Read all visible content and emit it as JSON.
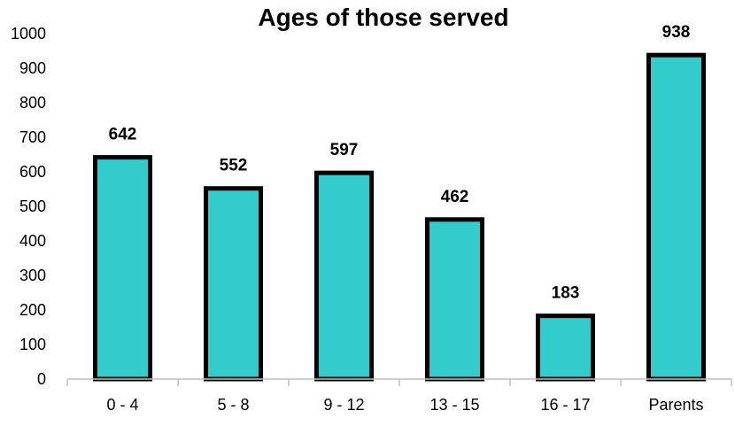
{
  "chart_data": {
    "type": "bar",
    "title": "Ages of those served",
    "xlabel": "",
    "ylabel": "",
    "categories": [
      "0 - 4",
      "5 - 8",
      "9 - 12",
      "13 - 15",
      "16 - 17",
      "Parents"
    ],
    "values": [
      642,
      552,
      597,
      462,
      183,
      938
    ],
    "ylim": [
      0,
      1000
    ],
    "yticks": [
      0,
      100,
      200,
      300,
      400,
      500,
      600,
      700,
      800,
      900,
      1000
    ],
    "grid": false,
    "legend": "none",
    "colors": {
      "bar_fill": "#33CCCC",
      "bar_outline": "#000000",
      "axis": "#BFBFBF"
    }
  }
}
